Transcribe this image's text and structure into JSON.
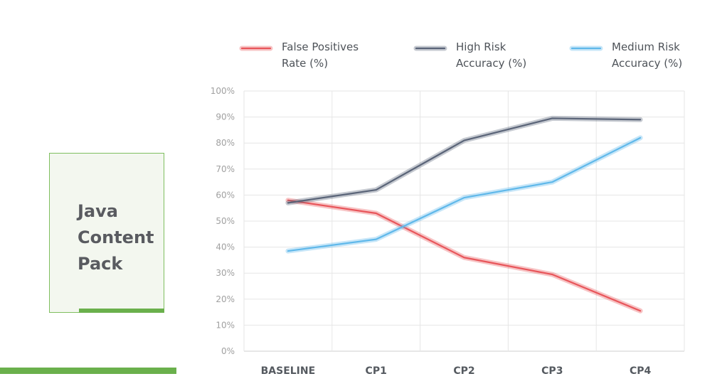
{
  "card": {
    "title_line1": "Java",
    "title_line2": "Content",
    "title_line3": "Pack"
  },
  "colors": {
    "false_positives": "#e8555a",
    "high_risk": "#5a6478",
    "medium_risk": "#5fb8ea",
    "accent_green": "#6ab04c"
  },
  "chart_data": {
    "type": "line",
    "categories": [
      "BASELINE",
      "CP1",
      "CP2",
      "CP3",
      "CP4"
    ],
    "y_ticks": [
      "0%",
      "10%",
      "20%",
      "30%",
      "40%",
      "50%",
      "60%",
      "70%",
      "80%",
      "90%",
      "100%"
    ],
    "ylim": [
      0,
      100
    ],
    "grid": true,
    "legend_position": "top",
    "series": [
      {
        "key": "false_positives",
        "name_line1": "False Positives",
        "name_line2": "Rate (%)",
        "values": [
          58,
          53,
          36,
          29.5,
          15.5
        ]
      },
      {
        "key": "high_risk",
        "name_line1": "High Risk",
        "name_line2": "Accuracy (%)",
        "values": [
          57,
          62,
          81,
          89.5,
          89
        ]
      },
      {
        "key": "medium_risk",
        "name_line1": "Medium Risk",
        "name_line2": "Accuracy (%)",
        "values": [
          38.5,
          43,
          59,
          65,
          82
        ]
      }
    ]
  }
}
